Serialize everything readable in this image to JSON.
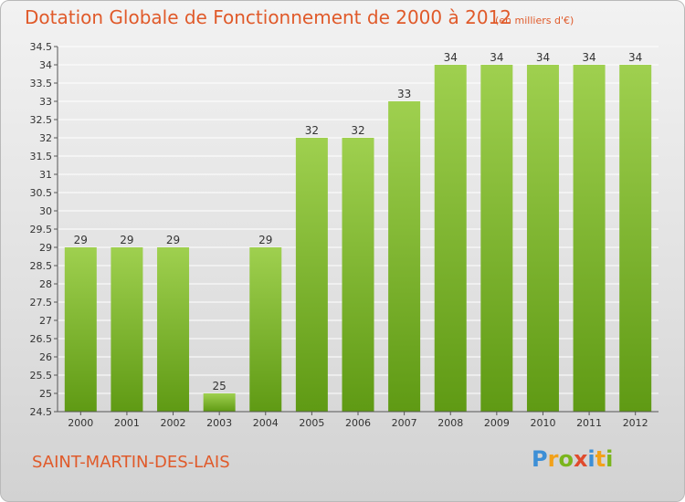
{
  "title": "Dotation Globale de Fonctionnement de 2000 à 2012",
  "unit_note": "(en milliers d'€)",
  "commune": "SAINT-MARTIN-DES-LAIS",
  "logo": {
    "text": "Proxiti",
    "letters": [
      {
        "ch": "P",
        "color": "#3d8fd6"
      },
      {
        "ch": "r",
        "color": "#f2a11a"
      },
      {
        "ch": "o",
        "color": "#7ab51d"
      },
      {
        "ch": "x",
        "color": "#e04b2d"
      },
      {
        "ch": "i",
        "color": "#3d8fd6"
      },
      {
        "ch": "t",
        "color": "#f2a11a"
      },
      {
        "ch": "i",
        "color": "#7ab51d"
      }
    ]
  },
  "colors": {
    "bar_top": "#9fd04f",
    "bar_bottom": "#5f9a14",
    "title": "#e05a2a",
    "grid": "#ffffff",
    "axis_text": "#333333"
  },
  "chart_data": {
    "type": "bar",
    "categories": [
      "2000",
      "2001",
      "2002",
      "2003",
      "2004",
      "2005",
      "2006",
      "2007",
      "2008",
      "2009",
      "2010",
      "2011",
      "2012"
    ],
    "values": [
      29,
      29,
      29,
      25,
      29,
      32,
      32,
      33,
      34,
      34,
      34,
      34,
      34
    ],
    "data_labels": [
      "29",
      "29",
      "29",
      "25",
      "29",
      "32",
      "32",
      "33",
      "34",
      "34",
      "34",
      "34",
      "34"
    ],
    "ylim": [
      24.5,
      34.5
    ],
    "yticks": [
      24.5,
      25,
      25.5,
      26,
      26.5,
      27,
      27.5,
      28,
      28.5,
      29,
      29.5,
      30,
      30.5,
      31,
      31.5,
      32,
      32.5,
      33,
      33.5,
      34,
      34.5
    ],
    "ytick_labels": [
      "24.5",
      "25",
      "25.5",
      "26",
      "26.5",
      "27",
      "27.5",
      "28",
      "28.5",
      "29",
      "29.5",
      "30",
      "30.5",
      "31",
      "31.5",
      "32",
      "32.5",
      "33",
      "33.5",
      "34",
      "34.5"
    ],
    "grid": true,
    "xlabel": "",
    "ylabel": ""
  }
}
